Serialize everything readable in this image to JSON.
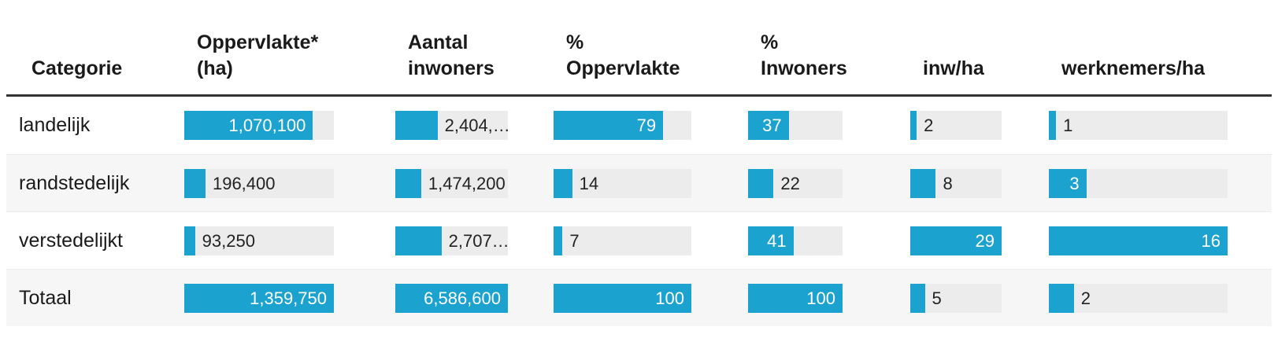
{
  "colors": {
    "bar_fill": "#1ca2ce",
    "bar_track": "#ececec",
    "header_rule": "#333333",
    "shaded_row": "#f6f6f6",
    "text": "#1a1a1a",
    "label_inside": "#ffffff",
    "label_outside": "#222222"
  },
  "table": {
    "columns": [
      {
        "id": "categorie",
        "label_lines": [
          "Categorie"
        ]
      },
      {
        "id": "oppervlakte-ha",
        "label_lines": [
          "Oppervlakte*",
          "(ha)"
        ]
      },
      {
        "id": "aantal-inwoners",
        "label_lines": [
          "Aantal",
          "inwoners"
        ]
      },
      {
        "id": "pct-oppervlakte",
        "label_lines": [
          "%",
          "Oppervlakte"
        ]
      },
      {
        "id": "pct-inwoners",
        "label_lines": [
          "%",
          "Inwoners"
        ]
      },
      {
        "id": "inw-ha",
        "label_lines": [
          "inw/ha"
        ]
      },
      {
        "id": "werknemers-ha",
        "label_lines": [
          "werknemers/ha"
        ]
      }
    ],
    "rows": [
      {
        "label": "landelijk",
        "shaded": false,
        "cells": [
          {
            "value": "1,070,100",
            "fill": 0.86,
            "inside": true
          },
          {
            "value": "2,404,…",
            "fill": 0.375,
            "inside": false
          },
          {
            "value": "79",
            "fill": 0.795,
            "inside": true
          },
          {
            "value": "37",
            "fill": 0.43,
            "inside": true
          },
          {
            "value": "2",
            "fill": 0.07,
            "inside": false
          },
          {
            "value": "1",
            "fill": 0.04,
            "inside": false
          }
        ]
      },
      {
        "label": "randstedelijk",
        "shaded": true,
        "cells": [
          {
            "value": "196,400",
            "fill": 0.142,
            "inside": false
          },
          {
            "value": "1,474,200",
            "fill": 0.23,
            "inside": false
          },
          {
            "value": "14",
            "fill": 0.135,
            "inside": false
          },
          {
            "value": "22",
            "fill": 0.27,
            "inside": false
          },
          {
            "value": "8",
            "fill": 0.28,
            "inside": false
          },
          {
            "value": "3",
            "fill": 0.21,
            "inside": true
          }
        ]
      },
      {
        "label": "verstedelijkt",
        "shaded": false,
        "cells": [
          {
            "value": "93,250",
            "fill": 0.072,
            "inside": false
          },
          {
            "value": "2,707…",
            "fill": 0.41,
            "inside": false
          },
          {
            "value": "7",
            "fill": 0.065,
            "inside": false
          },
          {
            "value": "41",
            "fill": 0.48,
            "inside": true
          },
          {
            "value": "29",
            "fill": 1.0,
            "inside": true
          },
          {
            "value": "16",
            "fill": 1.0,
            "inside": true
          }
        ]
      },
      {
        "label": "Totaal",
        "shaded": true,
        "cells": [
          {
            "value": "1,359,750",
            "fill": 1.0,
            "inside": true
          },
          {
            "value": "6,586,600",
            "fill": 1.0,
            "inside": true
          },
          {
            "value": "100",
            "fill": 1.0,
            "inside": true
          },
          {
            "value": "100",
            "fill": 1.0,
            "inside": true
          },
          {
            "value": "5",
            "fill": 0.16,
            "inside": false
          },
          {
            "value": "2",
            "fill": 0.14,
            "inside": false
          }
        ]
      }
    ]
  },
  "chart_data": {
    "type": "table",
    "title": "",
    "categories": [
      "landelijk",
      "randstedelijk",
      "verstedelijkt",
      "Totaal"
    ],
    "series": [
      {
        "name": "Oppervlakte* (ha)",
        "values": [
          1070100,
          196400,
          93250,
          1359750
        ],
        "display": [
          "1,070,100",
          "196,400",
          "93,250",
          "1,359,750"
        ]
      },
      {
        "name": "Aantal inwoners",
        "values": [
          null,
          1474200,
          null,
          6586600
        ],
        "display": [
          "2,404,…",
          "1,474,200",
          "2,707…",
          "6,586,600"
        ]
      },
      {
        "name": "% Oppervlakte",
        "values": [
          79,
          14,
          7,
          100
        ],
        "display": [
          "79",
          "14",
          "7",
          "100"
        ]
      },
      {
        "name": "% Inwoners",
        "values": [
          37,
          22,
          41,
          100
        ],
        "display": [
          "37",
          "22",
          "41",
          "100"
        ]
      },
      {
        "name": "inw/ha",
        "values": [
          2,
          8,
          29,
          5
        ],
        "display": [
          "2",
          "8",
          "29",
          "5"
        ]
      },
      {
        "name": "werknemers/ha",
        "values": [
          1,
          3,
          16,
          2
        ],
        "display": [
          "1",
          "3",
          "16",
          "2"
        ]
      }
    ],
    "layout": {
      "bars_in_cells": true,
      "bar_scale": "per-column max = full track width",
      "grid": false,
      "legend": false
    }
  }
}
